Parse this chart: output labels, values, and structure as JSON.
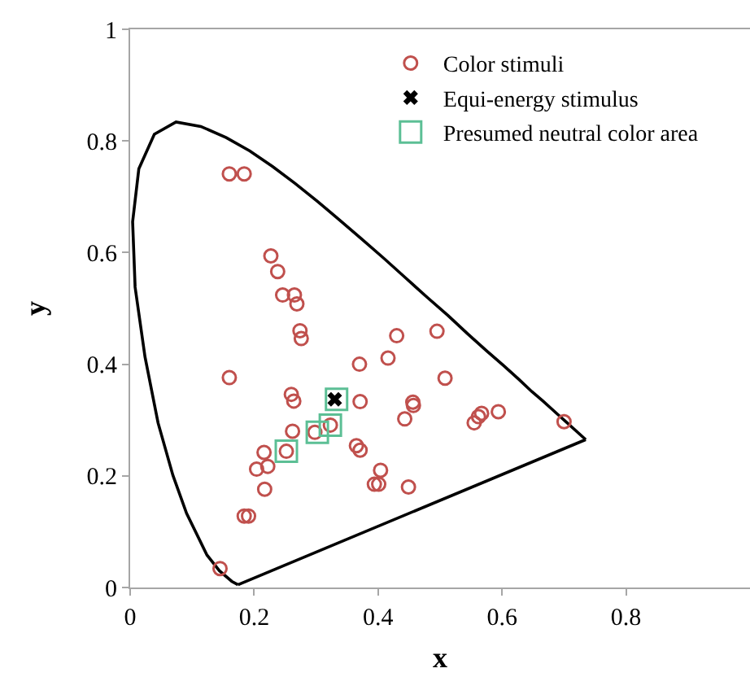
{
  "chart_data": {
    "type": "scatter",
    "xlabel": "x",
    "ylabel": "y",
    "xlim": [
      0,
      1
    ],
    "ylim": [
      0,
      1
    ],
    "xticks": [
      0,
      0.2,
      0.4,
      0.6,
      0.8
    ],
    "yticks": [
      0,
      0.2,
      0.4,
      0.6,
      0.8,
      1
    ],
    "grid": false,
    "legend": "top right",
    "series": [
      {
        "type": "line",
        "color": "#000000",
        "marker": "none",
        "line_style": "solid",
        "x": [
          0.174,
          0.164,
          0.144,
          0.124,
          0.091,
          0.069,
          0.045,
          0.024,
          0.008,
          0.004,
          0.014,
          0.039,
          0.074,
          0.114,
          0.155,
          0.193,
          0.23,
          0.266,
          0.302,
          0.337,
          0.373,
          0.409,
          0.444,
          0.479,
          0.513,
          0.545,
          0.575,
          0.603,
          0.627,
          0.648,
          0.666,
          0.68,
          0.692,
          0.701,
          0.735
        ],
        "values": [
          0.005,
          0.011,
          0.03,
          0.058,
          0.133,
          0.201,
          0.295,
          0.413,
          0.538,
          0.655,
          0.75,
          0.812,
          0.834,
          0.826,
          0.806,
          0.782,
          0.754,
          0.724,
          0.692,
          0.659,
          0.625,
          0.59,
          0.555,
          0.52,
          0.487,
          0.454,
          0.424,
          0.397,
          0.373,
          0.351,
          0.334,
          0.32,
          0.308,
          0.299,
          0.265
        ]
      },
      {
        "type": "line",
        "color": "#000000",
        "marker": "none",
        "line_style": "solid",
        "x": [
          0.174,
          0.735
        ],
        "values": [
          0.005,
          0.265
        ]
      },
      {
        "name": "Color stimuli",
        "color": "#c0504d",
        "marker": "circle",
        "x": [
          0.16,
          0.184,
          0.227,
          0.238,
          0.246,
          0.265,
          0.269,
          0.274,
          0.276,
          0.16,
          0.26,
          0.264,
          0.262,
          0.216,
          0.222,
          0.204,
          0.217,
          0.184,
          0.191,
          0.145,
          0.252,
          0.298,
          0.323,
          0.37,
          0.371,
          0.365,
          0.371,
          0.416,
          0.43,
          0.495,
          0.508,
          0.456,
          0.457,
          0.443,
          0.404,
          0.394,
          0.401,
          0.449,
          0.555,
          0.562,
          0.567,
          0.594,
          0.7
        ],
        "values": [
          0.741,
          0.741,
          0.594,
          0.566,
          0.524,
          0.524,
          0.508,
          0.46,
          0.446,
          0.376,
          0.346,
          0.334,
          0.28,
          0.242,
          0.217,
          0.212,
          0.176,
          0.128,
          0.128,
          0.034,
          0.244,
          0.278,
          0.291,
          0.4,
          0.333,
          0.254,
          0.246,
          0.411,
          0.451,
          0.459,
          0.375,
          0.332,
          0.326,
          0.302,
          0.21,
          0.185,
          0.185,
          0.18,
          0.295,
          0.306,
          0.312,
          0.315,
          0.297
        ]
      },
      {
        "name": "Equi-energy stimulus",
        "color": "#000000",
        "marker": "cross",
        "x": [
          0.33
        ],
        "values": [
          0.337
        ]
      },
      {
        "name": "Presumed neutral color area",
        "color": "#5cbf95",
        "marker": "square",
        "x": [
          0.252,
          0.302,
          0.323,
          0.333
        ],
        "values": [
          0.244,
          0.278,
          0.291,
          0.337
        ]
      }
    ]
  }
}
